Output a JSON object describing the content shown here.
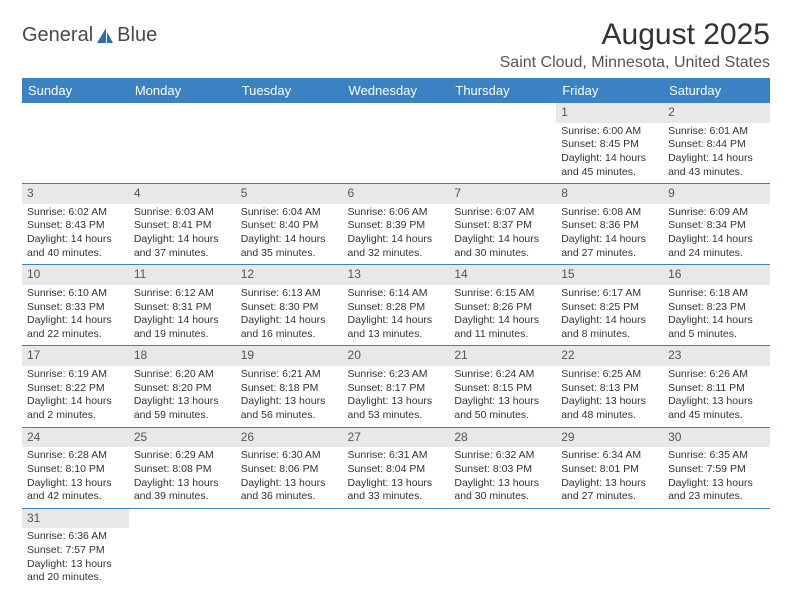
{
  "logo": {
    "word1": "General",
    "word2": "Blue"
  },
  "title": "August 2025",
  "subtitle": "Saint Cloud, Minnesota, United States",
  "colors": {
    "header_bg": "#3b82c4",
    "header_text": "#ffffff",
    "daynum_bg": "#e8e8e8",
    "border": "#3b82c4",
    "logo_blue": "#2a6fb0",
    "title_color": "#333333"
  },
  "fonts": {
    "title_size": 30,
    "subtitle_size": 16,
    "dayheader_size": 13,
    "cell_size": 10.5
  },
  "dayHeaders": [
    "Sunday",
    "Monday",
    "Tuesday",
    "Wednesday",
    "Thursday",
    "Friday",
    "Saturday"
  ],
  "weeks": [
    [
      null,
      null,
      null,
      null,
      null,
      {
        "n": "1",
        "sr": "Sunrise: 6:00 AM",
        "ss": "Sunset: 8:45 PM",
        "d1": "Daylight: 14 hours",
        "d2": "and 45 minutes."
      },
      {
        "n": "2",
        "sr": "Sunrise: 6:01 AM",
        "ss": "Sunset: 8:44 PM",
        "d1": "Daylight: 14 hours",
        "d2": "and 43 minutes."
      }
    ],
    [
      {
        "n": "3",
        "sr": "Sunrise: 6:02 AM",
        "ss": "Sunset: 8:43 PM",
        "d1": "Daylight: 14 hours",
        "d2": "and 40 minutes."
      },
      {
        "n": "4",
        "sr": "Sunrise: 6:03 AM",
        "ss": "Sunset: 8:41 PM",
        "d1": "Daylight: 14 hours",
        "d2": "and 37 minutes."
      },
      {
        "n": "5",
        "sr": "Sunrise: 6:04 AM",
        "ss": "Sunset: 8:40 PM",
        "d1": "Daylight: 14 hours",
        "d2": "and 35 minutes."
      },
      {
        "n": "6",
        "sr": "Sunrise: 6:06 AM",
        "ss": "Sunset: 8:39 PM",
        "d1": "Daylight: 14 hours",
        "d2": "and 32 minutes."
      },
      {
        "n": "7",
        "sr": "Sunrise: 6:07 AM",
        "ss": "Sunset: 8:37 PM",
        "d1": "Daylight: 14 hours",
        "d2": "and 30 minutes."
      },
      {
        "n": "8",
        "sr": "Sunrise: 6:08 AM",
        "ss": "Sunset: 8:36 PM",
        "d1": "Daylight: 14 hours",
        "d2": "and 27 minutes."
      },
      {
        "n": "9",
        "sr": "Sunrise: 6:09 AM",
        "ss": "Sunset: 8:34 PM",
        "d1": "Daylight: 14 hours",
        "d2": "and 24 minutes."
      }
    ],
    [
      {
        "n": "10",
        "sr": "Sunrise: 6:10 AM",
        "ss": "Sunset: 8:33 PM",
        "d1": "Daylight: 14 hours",
        "d2": "and 22 minutes."
      },
      {
        "n": "11",
        "sr": "Sunrise: 6:12 AM",
        "ss": "Sunset: 8:31 PM",
        "d1": "Daylight: 14 hours",
        "d2": "and 19 minutes."
      },
      {
        "n": "12",
        "sr": "Sunrise: 6:13 AM",
        "ss": "Sunset: 8:30 PM",
        "d1": "Daylight: 14 hours",
        "d2": "and 16 minutes."
      },
      {
        "n": "13",
        "sr": "Sunrise: 6:14 AM",
        "ss": "Sunset: 8:28 PM",
        "d1": "Daylight: 14 hours",
        "d2": "and 13 minutes."
      },
      {
        "n": "14",
        "sr": "Sunrise: 6:15 AM",
        "ss": "Sunset: 8:26 PM",
        "d1": "Daylight: 14 hours",
        "d2": "and 11 minutes."
      },
      {
        "n": "15",
        "sr": "Sunrise: 6:17 AM",
        "ss": "Sunset: 8:25 PM",
        "d1": "Daylight: 14 hours",
        "d2": "and 8 minutes."
      },
      {
        "n": "16",
        "sr": "Sunrise: 6:18 AM",
        "ss": "Sunset: 8:23 PM",
        "d1": "Daylight: 14 hours",
        "d2": "and 5 minutes."
      }
    ],
    [
      {
        "n": "17",
        "sr": "Sunrise: 6:19 AM",
        "ss": "Sunset: 8:22 PM",
        "d1": "Daylight: 14 hours",
        "d2": "and 2 minutes."
      },
      {
        "n": "18",
        "sr": "Sunrise: 6:20 AM",
        "ss": "Sunset: 8:20 PM",
        "d1": "Daylight: 13 hours",
        "d2": "and 59 minutes."
      },
      {
        "n": "19",
        "sr": "Sunrise: 6:21 AM",
        "ss": "Sunset: 8:18 PM",
        "d1": "Daylight: 13 hours",
        "d2": "and 56 minutes."
      },
      {
        "n": "20",
        "sr": "Sunrise: 6:23 AM",
        "ss": "Sunset: 8:17 PM",
        "d1": "Daylight: 13 hours",
        "d2": "and 53 minutes."
      },
      {
        "n": "21",
        "sr": "Sunrise: 6:24 AM",
        "ss": "Sunset: 8:15 PM",
        "d1": "Daylight: 13 hours",
        "d2": "and 50 minutes."
      },
      {
        "n": "22",
        "sr": "Sunrise: 6:25 AM",
        "ss": "Sunset: 8:13 PM",
        "d1": "Daylight: 13 hours",
        "d2": "and 48 minutes."
      },
      {
        "n": "23",
        "sr": "Sunrise: 6:26 AM",
        "ss": "Sunset: 8:11 PM",
        "d1": "Daylight: 13 hours",
        "d2": "and 45 minutes."
      }
    ],
    [
      {
        "n": "24",
        "sr": "Sunrise: 6:28 AM",
        "ss": "Sunset: 8:10 PM",
        "d1": "Daylight: 13 hours",
        "d2": "and 42 minutes."
      },
      {
        "n": "25",
        "sr": "Sunrise: 6:29 AM",
        "ss": "Sunset: 8:08 PM",
        "d1": "Daylight: 13 hours",
        "d2": "and 39 minutes."
      },
      {
        "n": "26",
        "sr": "Sunrise: 6:30 AM",
        "ss": "Sunset: 8:06 PM",
        "d1": "Daylight: 13 hours",
        "d2": "and 36 minutes."
      },
      {
        "n": "27",
        "sr": "Sunrise: 6:31 AM",
        "ss": "Sunset: 8:04 PM",
        "d1": "Daylight: 13 hours",
        "d2": "and 33 minutes."
      },
      {
        "n": "28",
        "sr": "Sunrise: 6:32 AM",
        "ss": "Sunset: 8:03 PM",
        "d1": "Daylight: 13 hours",
        "d2": "and 30 minutes."
      },
      {
        "n": "29",
        "sr": "Sunrise: 6:34 AM",
        "ss": "Sunset: 8:01 PM",
        "d1": "Daylight: 13 hours",
        "d2": "and 27 minutes."
      },
      {
        "n": "30",
        "sr": "Sunrise: 6:35 AM",
        "ss": "Sunset: 7:59 PM",
        "d1": "Daylight: 13 hours",
        "d2": "and 23 minutes."
      }
    ],
    [
      {
        "n": "31",
        "sr": "Sunrise: 6:36 AM",
        "ss": "Sunset: 7:57 PM",
        "d1": "Daylight: 13 hours",
        "d2": "and 20 minutes."
      },
      null,
      null,
      null,
      null,
      null,
      null
    ]
  ]
}
